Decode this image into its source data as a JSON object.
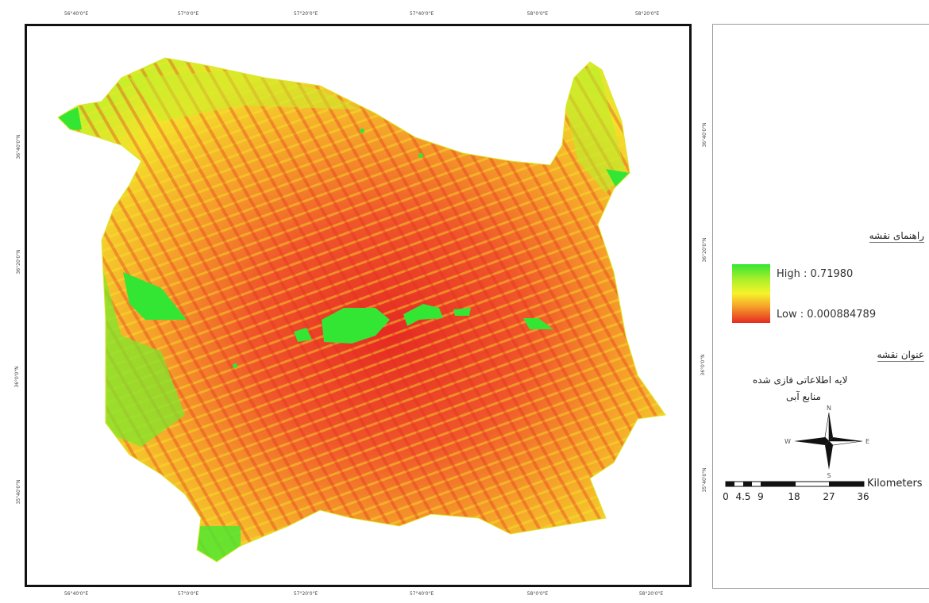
{
  "map": {
    "top_ticks": [
      "56°40'0\"E",
      "57°0'0\"E",
      "57°20'0\"E",
      "57°40'0\"E",
      "58°0'0\"E",
      "58°20'0\"E"
    ],
    "bottom_ticks": [
      "56°40'0\"E",
      "57°0'0\"E",
      "57°20'0\"E",
      "57°40'0\"E",
      "58°0'0\"E",
      "58°20'0\"E"
    ],
    "left_ticks": [
      "36°40'0\"N",
      "36°20'0\"N",
      "36°0'0\"N",
      "35°40'0\"N"
    ],
    "right_ticks": [
      "36°40'0\"N",
      "36°20'0\"N",
      "36°0'0\"N",
      "35°40'0\"N"
    ],
    "colors": {
      "high": "#33e633",
      "mid": "#f7f32a",
      "low": "#e52a22",
      "frame": "#111111"
    }
  },
  "legend": {
    "guide_title": "راهنمای نقشه",
    "high_label": "High : 0.71980",
    "low_label": "Low : 0.000884789",
    "map_title_heading": "عنوان نقشه",
    "layer_line1": "لایه اطلاعاتی فازی شده",
    "layer_line2": "منابع آبی"
  },
  "north_arrow": {
    "n": "N",
    "s": "S",
    "e": "E",
    "w": "W"
  },
  "scale_bar": {
    "ticks": [
      "0",
      "4.5",
      "9",
      "18",
      "27",
      "36"
    ],
    "unit": "Kilometers"
  }
}
